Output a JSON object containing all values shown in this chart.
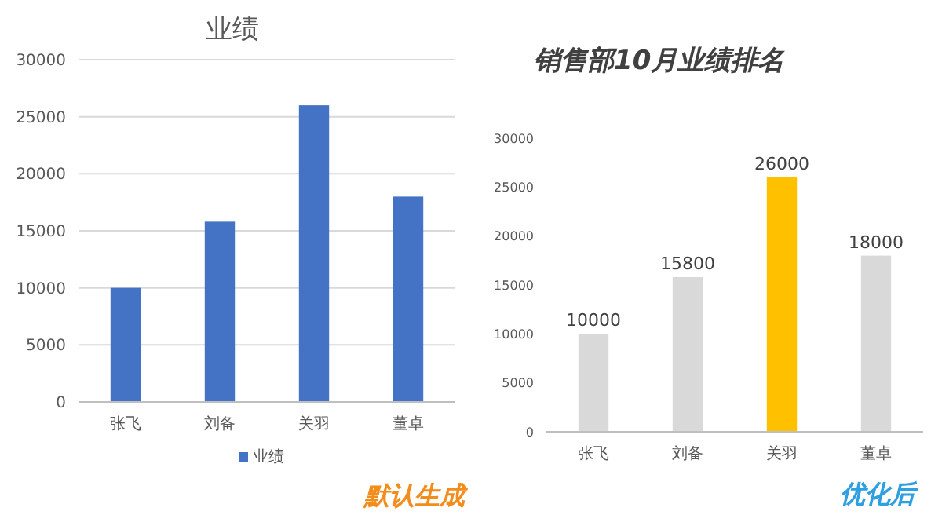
{
  "chart_data": [
    {
      "type": "bar",
      "title": "业绩",
      "categories": [
        "张飞",
        "刘备",
        "关羽",
        "董卓"
      ],
      "series": [
        {
          "name": "业绩",
          "color": "#4472c4",
          "values": [
            10000,
            15800,
            26000,
            18000
          ]
        }
      ],
      "ylim": [
        0,
        30000
      ],
      "yticks": [
        0,
        5000,
        10000,
        15000,
        20000,
        25000,
        30000
      ],
      "grid": "y",
      "legend": "bottom",
      "annotations": [
        "默认生成"
      ]
    },
    {
      "type": "bar",
      "title": "销售部10月业绩排名",
      "categories": [
        "张飞",
        "刘备",
        "关羽",
        "董卓"
      ],
      "values": [
        10000,
        15800,
        26000,
        18000
      ],
      "colors": [
        "#d9d9d9",
        "#d9d9d9",
        "#ffc000",
        "#d9d9d9"
      ],
      "ylim": [
        0,
        30000
      ],
      "yticks": [
        0,
        5000,
        10000,
        15000,
        20000,
        25000,
        30000
      ],
      "grid": false,
      "data_labels": true,
      "annotations": [
        "优化后"
      ]
    }
  ]
}
